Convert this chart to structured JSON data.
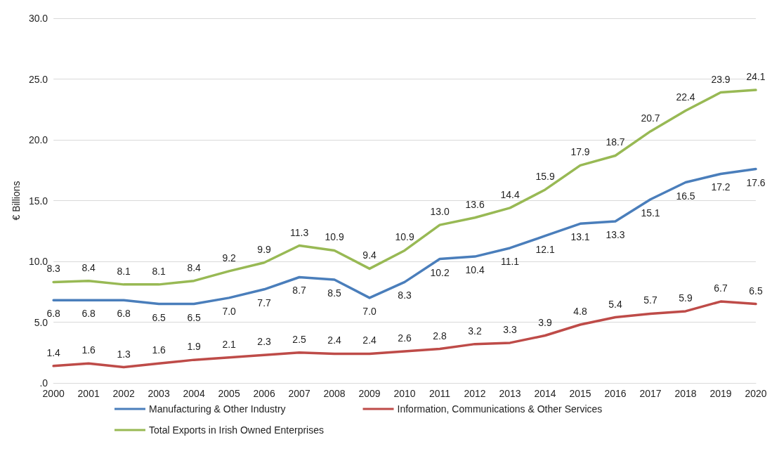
{
  "chart_data": {
    "type": "line",
    "ylabel": "€ Billions",
    "categories": [
      "2000",
      "2001",
      "2002",
      "2003",
      "2004",
      "2005",
      "2006",
      "2007",
      "2008",
      "2009",
      "2010",
      "2011",
      "2012",
      "2013",
      "2014",
      "2015",
      "2016",
      "2017",
      "2018",
      "2019",
      "2020"
    ],
    "series": [
      {
        "name": "Manufacturing & Other Industry",
        "color": "#4a7ebb",
        "values": [
          6.8,
          6.8,
          6.8,
          6.5,
          6.5,
          7.0,
          7.7,
          8.7,
          8.5,
          7.0,
          8.3,
          10.2,
          10.4,
          11.1,
          12.1,
          13.1,
          13.3,
          15.1,
          16.5,
          17.2,
          17.6
        ],
        "value_labels": [
          "6.8",
          "6.8",
          "6.8",
          "6.5",
          "6.5",
          "7.0",
          "7.7",
          "8.7",
          "8.5",
          "7.0",
          "8.3",
          "10.2",
          "10.4",
          "11.1",
          "12.1",
          "13.1",
          "13.3",
          "15.1",
          "16.5",
          "17.2",
          "17.6"
        ]
      },
      {
        "name": "Information, Communications & Other Services",
        "color": "#be4b48",
        "values": [
          1.4,
          1.6,
          1.3,
          1.6,
          1.9,
          2.1,
          2.3,
          2.5,
          2.4,
          2.4,
          2.6,
          2.8,
          3.2,
          3.3,
          3.9,
          4.8,
          5.4,
          5.7,
          5.9,
          6.7,
          6.5
        ],
        "value_labels": [
          "1.4",
          "1.6",
          "1.3",
          "1.6",
          "1.9",
          "2.1",
          "2.3",
          "2.5",
          "2.4",
          "2.4",
          "2.6",
          "2.8",
          "3.2",
          "3.3",
          "3.9",
          "4.8",
          "5.4",
          "5.7",
          "5.9",
          "6.7",
          "6.5"
        ]
      },
      {
        "name": "Total Exports in Irish Owned Enterprises",
        "color": "#98b954",
        "values": [
          8.3,
          8.4,
          8.1,
          8.1,
          8.4,
          9.2,
          9.9,
          11.3,
          10.9,
          9.4,
          10.9,
          13.0,
          13.6,
          14.4,
          15.9,
          17.9,
          18.7,
          20.7,
          22.4,
          23.9,
          24.1
        ],
        "value_labels": [
          "8.3",
          "8.4",
          "8.1",
          "8.1",
          "8.4",
          "9.2",
          "9.9",
          "11.3",
          "10.9",
          "9.4",
          "10.9",
          "13.0",
          "13.6",
          "14.4",
          "15.9",
          "17.9",
          "18.7",
          "20.7",
          "22.4",
          "23.9",
          "24.1"
        ]
      }
    ],
    "ylim": [
      0,
      30
    ],
    "yticks": [
      {
        "value": 0,
        "label": ".0"
      },
      {
        "value": 5,
        "label": "5.0"
      },
      {
        "value": 10,
        "label": "10.0"
      },
      {
        "value": 15,
        "label": "15.0"
      },
      {
        "value": 20,
        "label": "20.0"
      },
      {
        "value": 25,
        "label": "25.0"
      },
      {
        "value": 30,
        "label": "30.0"
      }
    ],
    "grid": "y",
    "legend": "bottom",
    "marker": "none",
    "line_style": "solid"
  }
}
